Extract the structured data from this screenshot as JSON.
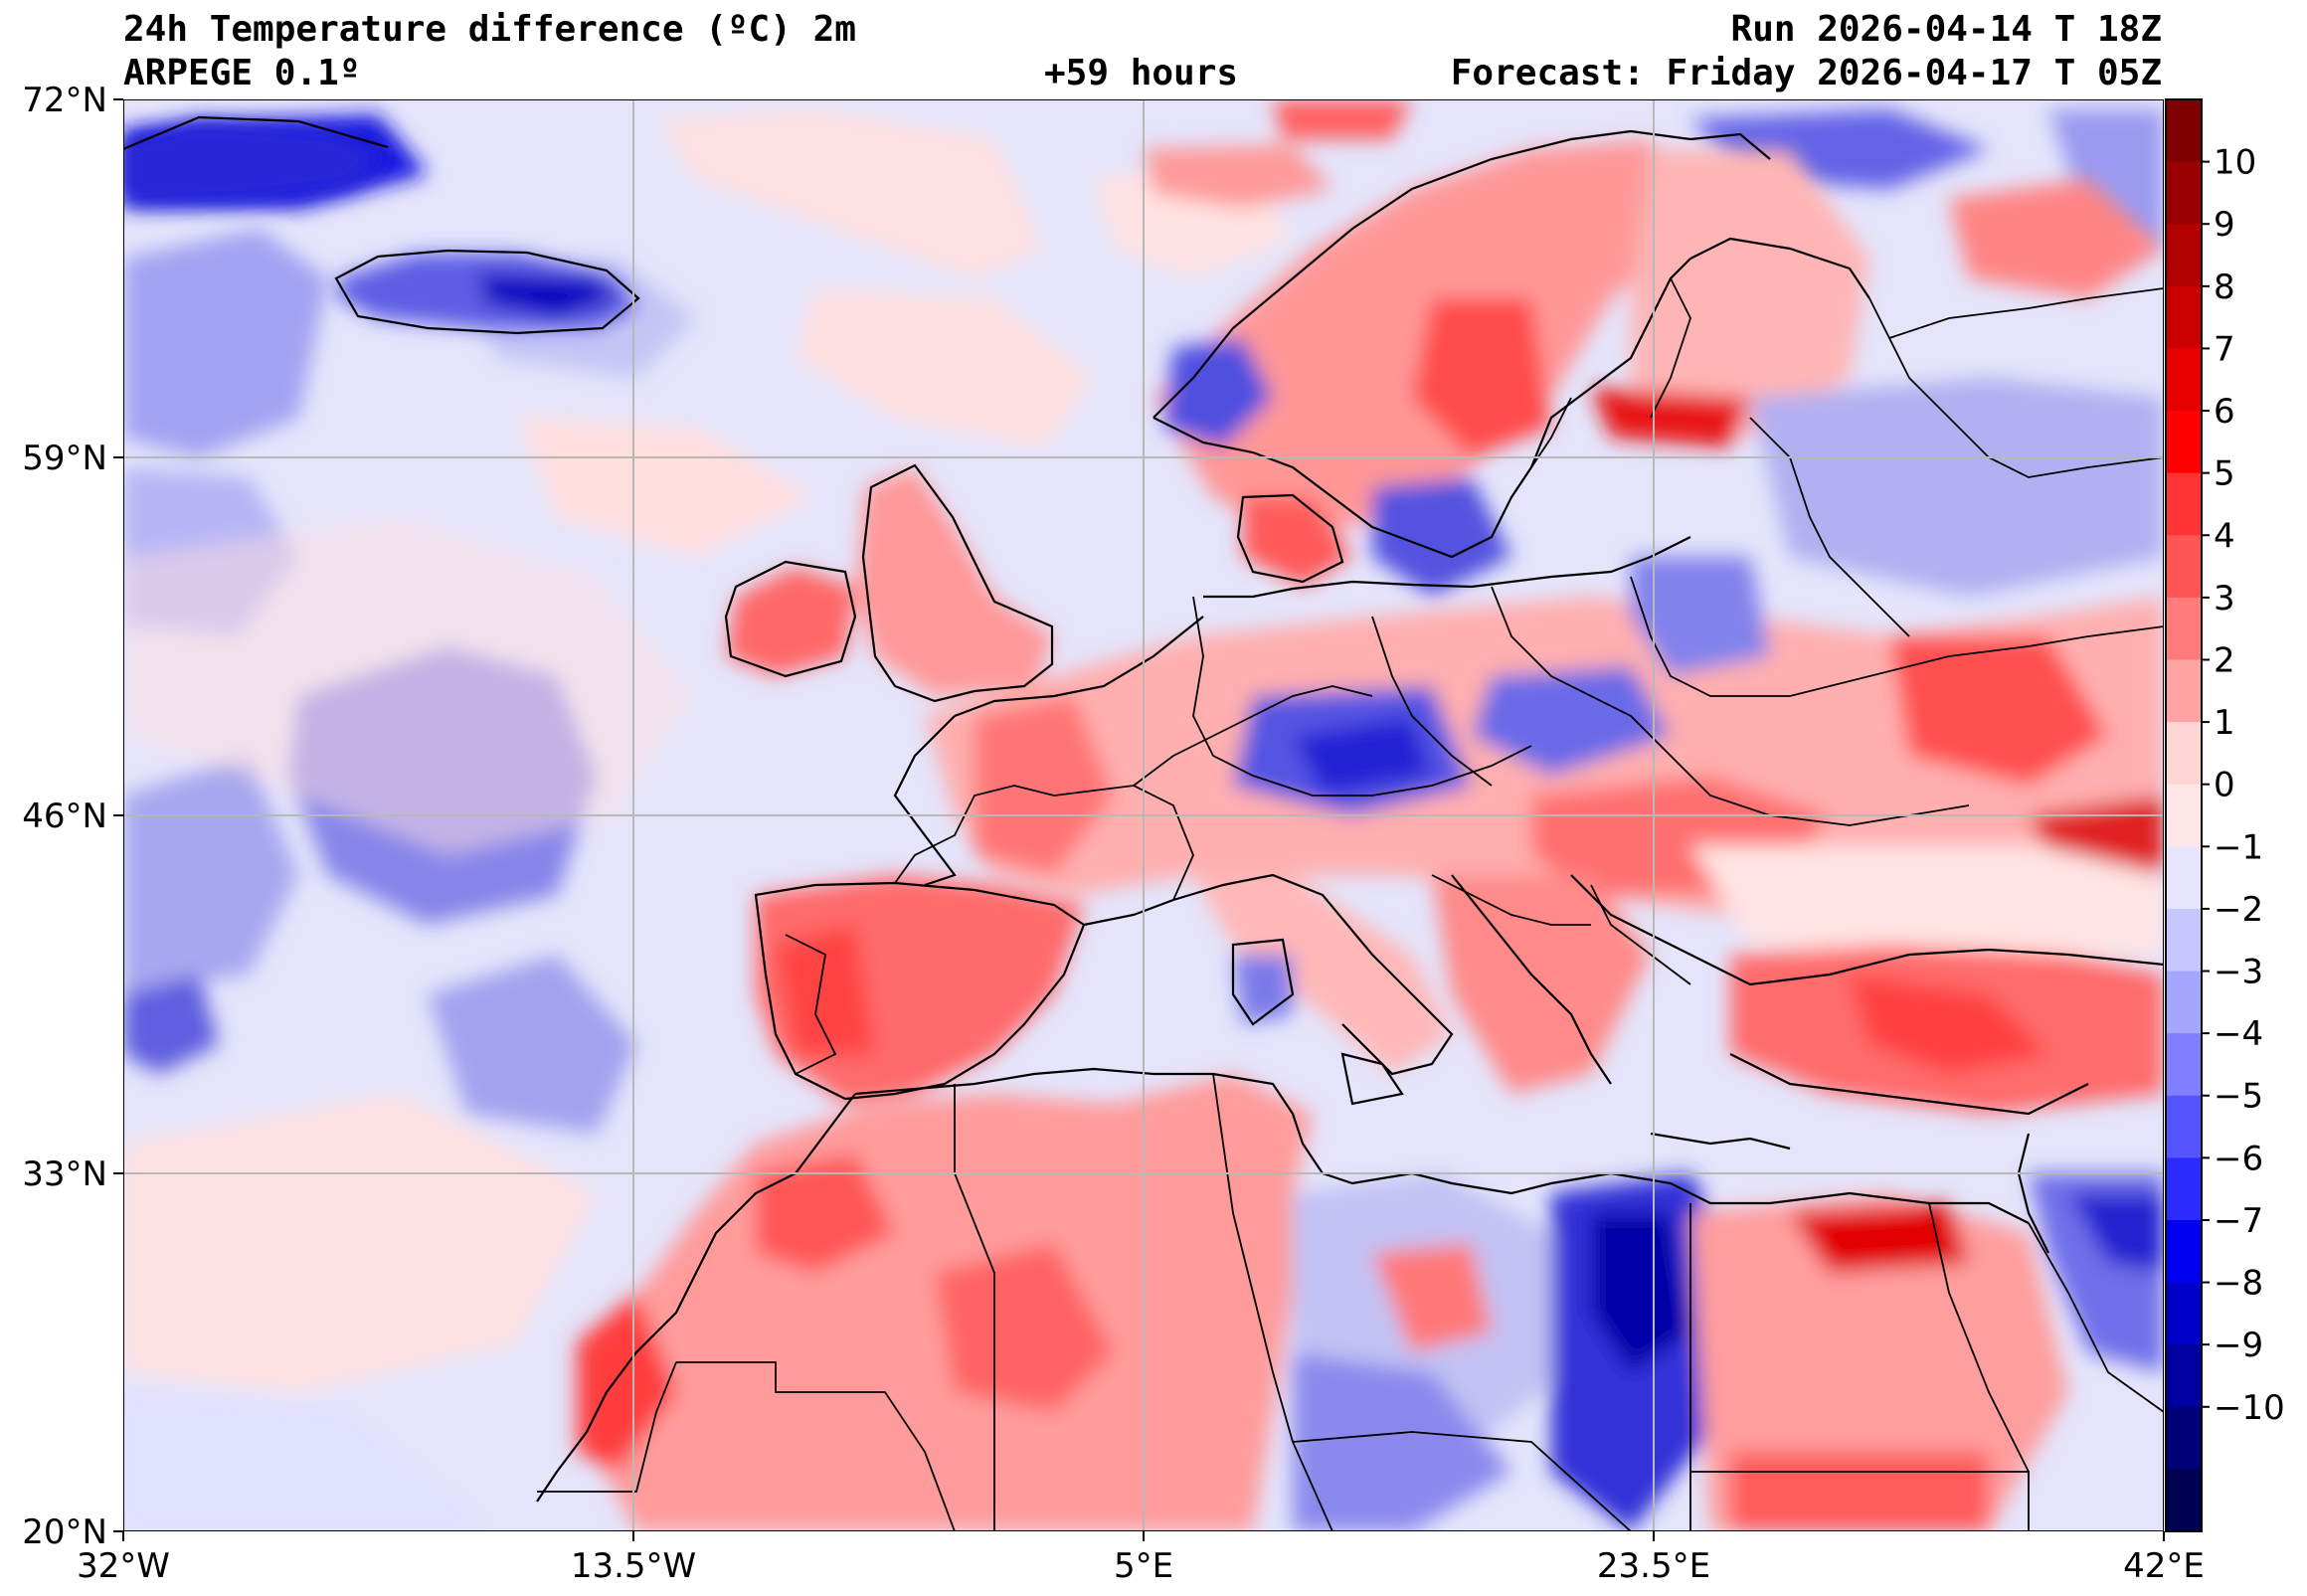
{
  "header": {
    "title": "24h Temperature difference (ºC) 2m",
    "model": "ARPEGE 0.1º",
    "run": "Run 2026-04-14 T 18Z",
    "lead": "+59 hours",
    "forecast": "Forecast: Friday 2026-04-17 T 05Z"
  },
  "map": {
    "lat_labels": [
      "72°N",
      "59°N",
      "46°N",
      "33°N",
      "20°N"
    ],
    "lon_labels": [
      "32°W",
      "13.5°W",
      "5°E",
      "23.5°E",
      "42°E"
    ],
    "lon_range": [
      -32,
      42
    ],
    "lat_range": [
      20,
      72
    ]
  },
  "colorbar": {
    "ticks": [
      "10",
      "9",
      "8",
      "7",
      "6",
      "5",
      "4",
      "3",
      "2",
      "1",
      "0",
      "−1",
      "−2",
      "−3",
      "−4",
      "−5",
      "−6",
      "−7",
      "−8",
      "−9",
      "−10"
    ],
    "colors": [
      "#7f0000",
      "#990000",
      "#b30000",
      "#cc0000",
      "#e60000",
      "#ff0000",
      "#ff3333",
      "#ff5555",
      "#ff7b7b",
      "#ffa3a3",
      "#ffd4d4",
      "#ffe6e6",
      "#e6e6ff",
      "#c7c7ff",
      "#a6a6ff",
      "#7f7fff",
      "#5555ff",
      "#2b2bff",
      "#0000f0",
      "#0000c8",
      "#0000a0",
      "#000078",
      "#000050"
    ]
  }
}
